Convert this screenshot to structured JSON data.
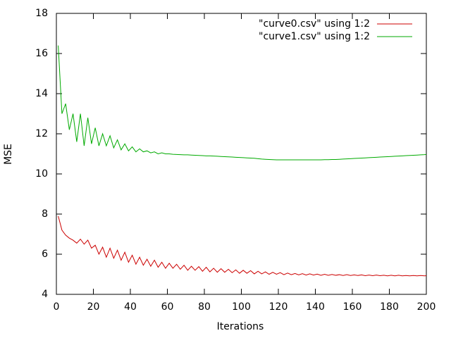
{
  "chart_data": {
    "type": "line",
    "xlabel": "Iterations",
    "ylabel": "MSE",
    "xlim": [
      0,
      200
    ],
    "xticks": [
      0,
      20,
      40,
      60,
      80,
      100,
      120,
      140,
      160,
      180,
      200
    ],
    "ylim": [
      4,
      18
    ],
    "yticks": [
      4,
      6,
      8,
      10,
      12,
      14,
      16,
      18
    ],
    "grid": false,
    "legend": "top-right",
    "x": [
      1,
      3,
      5,
      7,
      9,
      11,
      13,
      15,
      17,
      19,
      21,
      23,
      25,
      27,
      29,
      31,
      33,
      35,
      37,
      39,
      41,
      43,
      45,
      47,
      49,
      51,
      53,
      55,
      57,
      59,
      61,
      63,
      65,
      67,
      69,
      71,
      73,
      75,
      77,
      79,
      81,
      83,
      85,
      87,
      89,
      91,
      93,
      95,
      97,
      99,
      101,
      103,
      105,
      107,
      109,
      111,
      113,
      115,
      117,
      119,
      121,
      123,
      125,
      127,
      129,
      131,
      133,
      135,
      137,
      139,
      141,
      143,
      145,
      147,
      149,
      151,
      153,
      155,
      157,
      159,
      161,
      163,
      165,
      167,
      169,
      171,
      173,
      175,
      177,
      179,
      181,
      183,
      185,
      187,
      189,
      191,
      193,
      195,
      197,
      199,
      200
    ],
    "series": [
      {
        "name": "\"curve0.csv\" using 1:2",
        "color": "#cc0000",
        "values": [
          7.9,
          7.2,
          6.95,
          6.8,
          6.7,
          6.55,
          6.75,
          6.5,
          6.7,
          6.3,
          6.45,
          6.0,
          6.35,
          5.85,
          6.3,
          5.8,
          6.2,
          5.7,
          6.1,
          5.6,
          5.95,
          5.5,
          5.85,
          5.45,
          5.75,
          5.4,
          5.7,
          5.35,
          5.6,
          5.3,
          5.55,
          5.3,
          5.5,
          5.25,
          5.45,
          5.2,
          5.4,
          5.2,
          5.38,
          5.15,
          5.35,
          5.12,
          5.3,
          5.1,
          5.28,
          5.1,
          5.25,
          5.08,
          5.22,
          5.05,
          5.2,
          5.05,
          5.18,
          5.02,
          5.15,
          5.02,
          5.12,
          5.0,
          5.1,
          5.0,
          5.08,
          4.98,
          5.06,
          4.98,
          5.04,
          4.97,
          5.03,
          4.96,
          5.02,
          4.96,
          5.01,
          4.95,
          5.0,
          4.95,
          4.99,
          4.95,
          4.98,
          4.94,
          4.98,
          4.94,
          4.97,
          4.94,
          4.97,
          4.93,
          4.96,
          4.93,
          4.96,
          4.93,
          4.95,
          4.92,
          4.95,
          4.92,
          4.95,
          4.92,
          4.94,
          4.92,
          4.94,
          4.92,
          4.94,
          4.92,
          4.93
        ]
      },
      {
        "name": "\"curve1.csv\" using 1:2",
        "color": "#00aa00",
        "values": [
          16.4,
          13.0,
          13.5,
          12.2,
          13.0,
          11.6,
          13.0,
          11.4,
          12.8,
          11.5,
          12.3,
          11.4,
          12.0,
          11.4,
          11.9,
          11.3,
          11.7,
          11.2,
          11.5,
          11.15,
          11.35,
          11.1,
          11.25,
          11.1,
          11.15,
          11.05,
          11.1,
          11.0,
          11.05,
          11.0,
          11.0,
          10.98,
          10.97,
          10.96,
          10.95,
          10.95,
          10.94,
          10.93,
          10.92,
          10.91,
          10.9,
          10.9,
          10.89,
          10.88,
          10.87,
          10.86,
          10.85,
          10.84,
          10.83,
          10.82,
          10.81,
          10.8,
          10.79,
          10.78,
          10.76,
          10.74,
          10.73,
          10.72,
          10.71,
          10.7,
          10.7,
          10.7,
          10.7,
          10.7,
          10.7,
          10.7,
          10.7,
          10.7,
          10.7,
          10.7,
          10.7,
          10.7,
          10.71,
          10.71,
          10.72,
          10.72,
          10.73,
          10.74,
          10.75,
          10.76,
          10.77,
          10.78,
          10.79,
          10.8,
          10.81,
          10.82,
          10.83,
          10.84,
          10.85,
          10.86,
          10.87,
          10.88,
          10.89,
          10.9,
          10.91,
          10.92,
          10.93,
          10.94,
          10.95,
          10.96,
          10.97
        ]
      }
    ]
  }
}
